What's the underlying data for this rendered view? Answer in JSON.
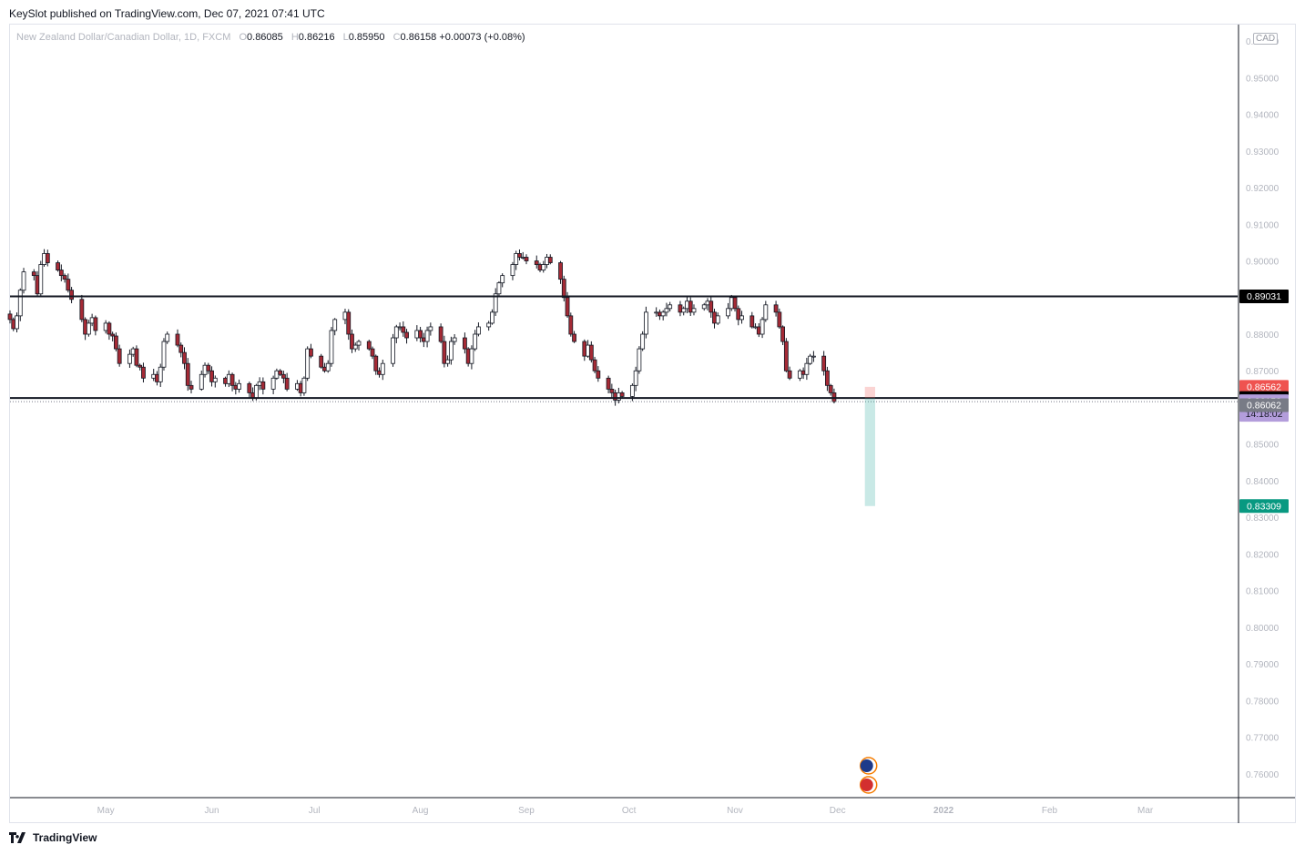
{
  "header": {
    "published": "KeySlot published on TradingView.com, Dec 07, 2021 07:41 UTC"
  },
  "legend": {
    "symbol": "New Zealand Dollar/Canadian Dollar, 1D, FXCM",
    "open_label": "O",
    "open": "0.86085",
    "high_label": "H",
    "high": "0.86216",
    "low_label": "L",
    "low": "0.85950",
    "close_label": "C",
    "close": "0.86158",
    "change": "+0.00073 (+0.08%)"
  },
  "currency": "CAD",
  "footer": {
    "brand": "TradingView"
  },
  "colors": {
    "up": "#ffffff",
    "down": "#a52a35",
    "wick": "#131722",
    "grid_text": "#b2b5be",
    "resistance": "#131722",
    "target": "#26a69a",
    "stop": "#ef5350",
    "current_price_bg": "#b39ddb",
    "black_label": "#000000",
    "gray_label": "#787b86"
  },
  "chart_data": {
    "type": "candlestick",
    "title": "New Zealand Dollar/Canadian Dollar, 1D, FXCM",
    "ylim": [
      0.7535,
      0.9645
    ],
    "y_ticks": [
      "0.96000",
      "0.95000",
      "0.94000",
      "0.93000",
      "0.92000",
      "0.91000",
      "0.90000",
      "0.89000",
      "0.88000",
      "0.87000",
      "0.86000",
      "0.85000",
      "0.84000",
      "0.83000",
      "0.82000",
      "0.81000",
      "0.80000",
      "0.79000",
      "0.78000",
      "0.77000",
      "0.76000"
    ],
    "x_ticks": [
      {
        "label": "May",
        "day": 30
      },
      {
        "label": "Jun",
        "day": 61
      },
      {
        "label": "Jul",
        "day": 91
      },
      {
        "label": "Aug",
        "day": 122
      },
      {
        "label": "Sep",
        "day": 153
      },
      {
        "label": "Oct",
        "day": 183
      },
      {
        "label": "Nov",
        "day": 214
      },
      {
        "label": "Dec",
        "day": 244
      },
      {
        "label": "2022",
        "day": 275
      },
      {
        "label": "Feb",
        "day": 306
      },
      {
        "label": "Mar",
        "day": 334
      }
    ],
    "x_range_days": [
      2,
      361
    ],
    "series_close": [
      0.884,
      0.8815,
      0.885,
      0.892,
      0.897,
      0.896,
      0.891,
      0.899,
      0.902,
      0.8995,
      0.8975,
      0.896,
      0.895,
      0.892,
      0.8895,
      0.884,
      0.88,
      0.883,
      0.8845,
      0.881,
      0.883,
      0.88,
      0.8795,
      0.876,
      0.872,
      0.8745,
      0.876,
      0.8715,
      0.871,
      0.868,
      0.869,
      0.867,
      0.871,
      0.878,
      0.88,
      0.877,
      0.875,
      0.872,
      0.866,
      0.865,
      0.869,
      0.8715,
      0.87,
      0.867,
      0.868,
      0.8665,
      0.869,
      0.866,
      0.865,
      0.8665,
      0.864,
      0.8625,
      0.866,
      0.867,
      0.865,
      0.868,
      0.87,
      0.869,
      0.868,
      0.865,
      0.8665,
      0.864,
      0.868,
      0.876,
      0.874,
      0.871,
      0.87,
      0.872,
      0.881,
      0.884,
      0.886,
      0.88,
      0.876,
      0.877,
      0.878,
      0.876,
      0.874,
      0.87,
      0.869,
      0.872,
      0.879,
      0.882,
      0.882,
      0.8805,
      0.879,
      0.881,
      0.879,
      0.878,
      0.881,
      0.882,
      0.878,
      0.872,
      0.873,
      0.878,
      0.879,
      0.876,
      0.872,
      0.876,
      0.88,
      0.882,
      0.883,
      0.886,
      0.891,
      0.894,
      0.896,
      0.899,
      0.902,
      0.901,
      0.901,
      0.9,
      0.899,
      0.8975,
      0.899,
      0.901,
      0.8995,
      0.895,
      0.89,
      0.885,
      0.88,
      0.878,
      0.874,
      0.877,
      0.873,
      0.87,
      0.868,
      0.865,
      0.864,
      0.862,
      0.864,
      0.863,
      0.866,
      0.87,
      0.876,
      0.88,
      0.886,
      0.886,
      0.885,
      0.886,
      0.887,
      0.888,
      0.886,
      0.887,
      0.889,
      0.886,
      0.887,
      0.888,
      0.889,
      0.886,
      0.883,
      0.885,
      0.887,
      0.89,
      0.887,
      0.884,
      0.885,
      0.882,
      0.882,
      0.88,
      0.884,
      0.888,
      0.886,
      0.882,
      0.878,
      0.87,
      0.868,
      0.87,
      0.869,
      0.872,
      0.874,
      0.874,
      0.87,
      0.866,
      0.864,
      0.86158
    ],
    "first_candle_day": 2,
    "levels": [
      {
        "name": "resistance",
        "value": 0.89031
      },
      {
        "name": "support",
        "value": 0.86256
      }
    ],
    "position": {
      "entry": 0.86256,
      "stop": 0.86562,
      "target": 0.83309,
      "start_day": 252,
      "end_day": 255
    },
    "price_labels": [
      {
        "value": 0.89031,
        "text": "0.89031",
        "style": "black"
      },
      {
        "value": 0.86562,
        "text": "0.86562",
        "style": "red"
      },
      {
        "value": 0.86256,
        "text": "0.86256",
        "style": "black"
      },
      {
        "value": 0.86158,
        "text": "0.86158",
        "style": "current",
        "sub": "14:18:02"
      },
      {
        "value": 0.86062,
        "text": "0.86062",
        "style": "gray"
      },
      {
        "value": 0.83309,
        "text": "0.83309",
        "style": "green"
      }
    ]
  }
}
